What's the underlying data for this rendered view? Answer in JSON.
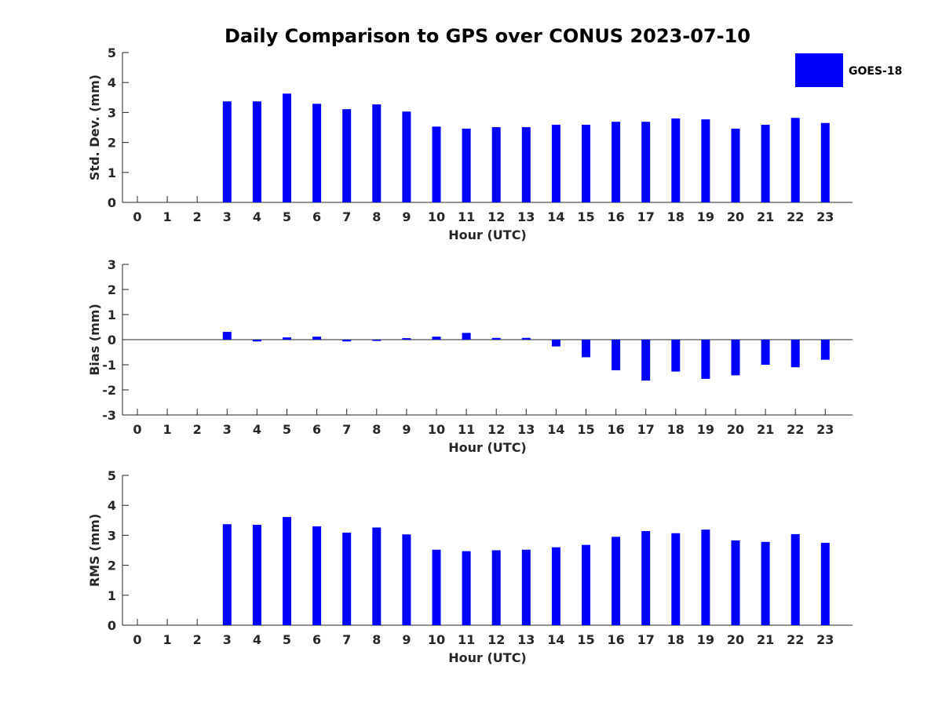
{
  "chart_data": {
    "type": "bar",
    "title": "Daily Comparison to GPS over CONUS 2023-07-10",
    "legend": {
      "label": "GOES-18",
      "color": "#0000ff",
      "placement": "top-right"
    },
    "x": [
      0,
      1,
      2,
      3,
      4,
      5,
      6,
      7,
      8,
      9,
      10,
      11,
      12,
      13,
      14,
      15,
      16,
      17,
      18,
      19,
      20,
      21,
      22,
      23
    ],
    "panels": [
      {
        "name": "std-dev",
        "ylabel": "Std. Dev. (mm)",
        "xlabel": "Hour (UTC)",
        "ylim": [
          0,
          5
        ],
        "yticks": [
          0,
          1,
          2,
          3,
          4,
          5
        ],
        "values": [
          null,
          null,
          null,
          3.37,
          3.37,
          3.63,
          3.29,
          3.11,
          3.27,
          3.03,
          2.53,
          2.46,
          2.51,
          2.51,
          2.59,
          2.59,
          2.69,
          2.69,
          2.8,
          2.77,
          2.46,
          2.59,
          2.82,
          2.65
        ]
      },
      {
        "name": "bias",
        "ylabel": "Bias (mm)",
        "xlabel": "Hour (UTC)",
        "ylim": [
          -3,
          3
        ],
        "yticks": [
          -3,
          -2,
          -1,
          0,
          1,
          2,
          3
        ],
        "values": [
          null,
          null,
          null,
          0.31,
          -0.07,
          0.09,
          0.12,
          -0.07,
          -0.05,
          0.06,
          0.12,
          0.27,
          0.07,
          0.07,
          -0.27,
          -0.7,
          -1.22,
          -1.63,
          -1.27,
          -1.56,
          -1.42,
          -1.0,
          -1.1,
          -0.8
        ]
      },
      {
        "name": "rms",
        "ylabel": "RMS (mm)",
        "xlabel": "Hour (UTC)",
        "ylim": [
          0,
          5
        ],
        "yticks": [
          0,
          1,
          2,
          3,
          4,
          5
        ],
        "values": [
          null,
          null,
          null,
          3.37,
          3.35,
          3.61,
          3.3,
          3.09,
          3.26,
          3.03,
          2.52,
          2.47,
          2.5,
          2.52,
          2.6,
          2.68,
          2.95,
          3.14,
          3.07,
          3.19,
          2.83,
          2.78,
          3.04,
          2.75
        ]
      }
    ]
  }
}
